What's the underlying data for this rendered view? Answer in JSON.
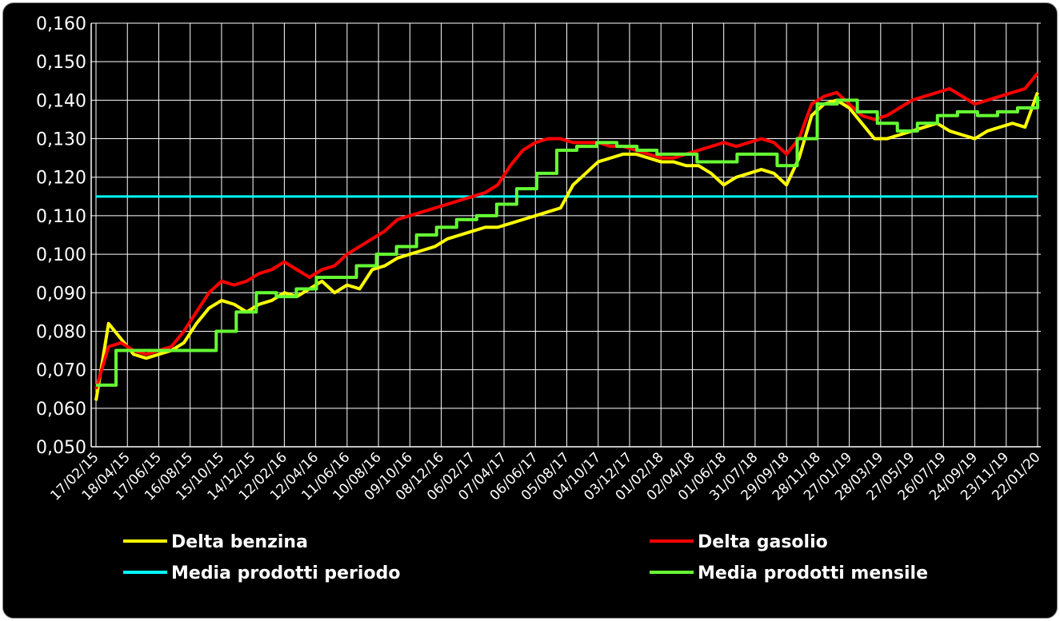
{
  "chart_data": {
    "type": "line",
    "ylim": [
      0.05,
      0.16
    ],
    "y_ticks": [
      "0,050",
      "0,060",
      "0,070",
      "0,080",
      "0,090",
      "0,100",
      "0,110",
      "0,120",
      "0,130",
      "0,140",
      "0,150",
      "0,160"
    ],
    "x_ticks": [
      "17/02/15",
      "18/04/15",
      "17/06/15",
      "16/08/15",
      "15/10/15",
      "14/12/15",
      "12/02/16",
      "12/04/16",
      "11/06/16",
      "10/08/16",
      "09/10/16",
      "08/12/16",
      "06/02/17",
      "07/04/17",
      "06/06/17",
      "05/08/17",
      "04/10/17",
      "03/12/17",
      "01/02/18",
      "02/04/18",
      "01/06/18",
      "31/07/18",
      "29/09/18",
      "28/11/18",
      "27/01/19",
      "28/03/19",
      "27/05/19",
      "26/07/19",
      "24/09/19",
      "23/11/19",
      "22/01/20"
    ],
    "grid": true,
    "legend_position": "bottom",
    "series": [
      {
        "name": "Delta benzina",
        "color": "#ffff00",
        "values": [
          0.062,
          0.082,
          0.078,
          0.074,
          0.073,
          0.074,
          0.075,
          0.077,
          0.082,
          0.086,
          0.088,
          0.087,
          0.085,
          0.087,
          0.088,
          0.09,
          0.089,
          0.091,
          0.093,
          0.09,
          0.092,
          0.091,
          0.096,
          0.097,
          0.099,
          0.1,
          0.101,
          0.102,
          0.104,
          0.105,
          0.106,
          0.107,
          0.107,
          0.108,
          0.109,
          0.11,
          0.111,
          0.112,
          0.118,
          0.121,
          0.124,
          0.125,
          0.126,
          0.126,
          0.125,
          0.124,
          0.124,
          0.123,
          0.123,
          0.121,
          0.118,
          0.12,
          0.121,
          0.122,
          0.121,
          0.118,
          0.125,
          0.136,
          0.139,
          0.14,
          0.138,
          0.134,
          0.13,
          0.13,
          0.131,
          0.132,
          0.133,
          0.134,
          0.132,
          0.131,
          0.13,
          0.132,
          0.133,
          0.134,
          0.133,
          0.142
        ]
      },
      {
        "name": "Delta gasolio",
        "color": "#ff0000",
        "values": [
          0.065,
          0.076,
          0.077,
          0.075,
          0.074,
          0.075,
          0.076,
          0.08,
          0.085,
          0.09,
          0.093,
          0.092,
          0.093,
          0.095,
          0.096,
          0.098,
          0.096,
          0.094,
          0.096,
          0.097,
          0.1,
          0.102,
          0.104,
          0.106,
          0.109,
          0.11,
          0.111,
          0.112,
          0.113,
          0.114,
          0.115,
          0.116,
          0.118,
          0.123,
          0.127,
          0.129,
          0.13,
          0.13,
          0.129,
          0.129,
          0.129,
          0.128,
          0.128,
          0.127,
          0.126,
          0.125,
          0.125,
          0.126,
          0.127,
          0.128,
          0.129,
          0.128,
          0.129,
          0.13,
          0.129,
          0.126,
          0.13,
          0.139,
          0.141,
          0.142,
          0.139,
          0.136,
          0.135,
          0.136,
          0.138,
          0.14,
          0.141,
          0.142,
          0.143,
          0.141,
          0.139,
          0.14,
          0.141,
          0.142,
          0.143,
          0.147
        ]
      },
      {
        "name": "Media prodotti periodo",
        "color": "#00ffff",
        "values": [
          0.115,
          0.115
        ]
      },
      {
        "name": "Media prodotti mensile",
        "color": "#66ff33",
        "values": [
          0.066,
          0.075,
          0.075,
          0.075,
          0.075,
          0.075,
          0.08,
          0.085,
          0.09,
          0.089,
          0.091,
          0.094,
          0.094,
          0.097,
          0.1,
          0.102,
          0.105,
          0.107,
          0.109,
          0.11,
          0.113,
          0.117,
          0.121,
          0.127,
          0.128,
          0.129,
          0.128,
          0.127,
          0.126,
          0.126,
          0.124,
          0.124,
          0.126,
          0.126,
          0.123,
          0.13,
          0.139,
          0.14,
          0.137,
          0.134,
          0.132,
          0.134,
          0.136,
          0.137,
          0.136,
          0.137,
          0.138,
          0.141
        ]
      }
    ]
  }
}
